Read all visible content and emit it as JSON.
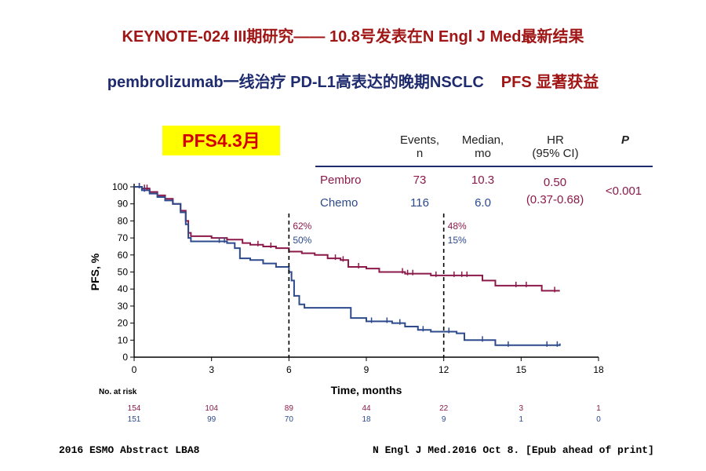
{
  "slide": {
    "title_line1": "KEYNOTE-024   III期研究—— 10.8号发表在N Engl J Med最新结果",
    "title_line2_a": "pembrolizumab一线治疗 PD-L1高表达的晚期NSCLC",
    "title_line2_b": "PFS 显著获益",
    "badge": "PFS4.3月",
    "footer_left": "2016 ESMO  Abstract LBA8",
    "footer_right": "N Engl J Med.2016 Oct 8. [Epub ahead of print]"
  },
  "stats_table": {
    "headers": {
      "events": "Events,",
      "events_unit": "n",
      "median": "Median,",
      "median_unit": "mo",
      "hr": "HR",
      "hr_ci": "(95% CI)",
      "p": "P"
    },
    "pembro": {
      "label": "Pembro",
      "events": "73",
      "median": "10.3"
    },
    "chemo": {
      "label": "Chemo",
      "events": "116",
      "median": "6.0"
    },
    "hr_value": "0.50",
    "hr_range": "(0.37-0.68)",
    "p_value": "<0.001",
    "colors": {
      "pembro": "#8b1a4a",
      "chemo": "#2c4a8c",
      "rule": "#1e2b6e"
    }
  },
  "chart_data": {
    "type": "line",
    "subtype": "kaplan-meier",
    "xlabel": "Time, months",
    "ylabel": "PFS, %",
    "xlim": [
      0,
      18
    ],
    "ylim": [
      0,
      100
    ],
    "x_ticks": [
      0,
      3,
      6,
      9,
      12,
      15,
      18
    ],
    "y_ticks": [
      0,
      10,
      20,
      30,
      40,
      50,
      60,
      70,
      80,
      90,
      100
    ],
    "series": [
      {
        "name": "Pembro",
        "color": "#8b1a4a",
        "points": [
          [
            0,
            100
          ],
          [
            0.3,
            99
          ],
          [
            0.6,
            97
          ],
          [
            0.9,
            95
          ],
          [
            1.2,
            93
          ],
          [
            1.5,
            90
          ],
          [
            1.8,
            86
          ],
          [
            2.0,
            80
          ],
          [
            2.1,
            73
          ],
          [
            2.2,
            71
          ],
          [
            2.6,
            71
          ],
          [
            3.0,
            70
          ],
          [
            3.6,
            69
          ],
          [
            4.2,
            67
          ],
          [
            4.5,
            66
          ],
          [
            5.0,
            65
          ],
          [
            5.5,
            64
          ],
          [
            6.0,
            62
          ],
          [
            6.5,
            61
          ],
          [
            7.0,
            60
          ],
          [
            7.5,
            58
          ],
          [
            8.0,
            57
          ],
          [
            8.3,
            53
          ],
          [
            9.0,
            52
          ],
          [
            9.5,
            50
          ],
          [
            10.0,
            50
          ],
          [
            10.5,
            49
          ],
          [
            11.0,
            49
          ],
          [
            11.5,
            48
          ],
          [
            12.0,
            48
          ],
          [
            13.0,
            48
          ],
          [
            13.5,
            45
          ],
          [
            14.0,
            42
          ],
          [
            15.0,
            42
          ],
          [
            15.8,
            39
          ],
          [
            16.5,
            39
          ]
        ]
      },
      {
        "name": "Chemo",
        "color": "#2c4a8c",
        "points": [
          [
            0,
            100
          ],
          [
            0.3,
            98
          ],
          [
            0.6,
            96
          ],
          [
            0.9,
            94
          ],
          [
            1.2,
            92
          ],
          [
            1.5,
            90
          ],
          [
            1.8,
            85
          ],
          [
            2.0,
            78
          ],
          [
            2.1,
            70
          ],
          [
            2.2,
            68
          ],
          [
            3.0,
            68
          ],
          [
            3.6,
            67
          ],
          [
            3.9,
            64
          ],
          [
            4.1,
            58
          ],
          [
            4.5,
            57
          ],
          [
            5.0,
            55
          ],
          [
            5.5,
            53
          ],
          [
            6.0,
            50
          ],
          [
            6.1,
            45
          ],
          [
            6.2,
            36
          ],
          [
            6.4,
            31
          ],
          [
            6.6,
            29
          ],
          [
            7.0,
            29
          ],
          [
            8.0,
            29
          ],
          [
            8.4,
            23
          ],
          [
            9.0,
            21
          ],
          [
            9.5,
            21
          ],
          [
            10.0,
            20
          ],
          [
            10.5,
            18
          ],
          [
            11.0,
            16
          ],
          [
            11.5,
            15
          ],
          [
            12.0,
            15
          ],
          [
            12.5,
            14
          ],
          [
            12.8,
            10
          ],
          [
            13.5,
            10
          ],
          [
            14.0,
            7
          ],
          [
            15.0,
            7
          ],
          [
            16.5,
            8
          ]
        ]
      }
    ],
    "censor_marks": [
      {
        "series": "Pembro",
        "x": [
          0.2,
          0.4,
          0.5,
          4.8,
          5.3,
          7.8,
          8.1,
          8.7,
          10.4,
          10.6,
          10.8,
          11.7,
          12.4,
          12.7,
          12.9,
          14.8,
          15.2,
          16.3
        ]
      },
      {
        "series": "Chemo",
        "x": [
          0.2,
          0.4,
          3.3,
          3.5,
          9.2,
          9.8,
          10.3,
          11.2,
          12.2,
          13.5,
          14.5,
          16.0,
          16.4
        ]
      }
    ],
    "landmarks": [
      {
        "x": 6,
        "labels": [
          "62%",
          "50%"
        ]
      },
      {
        "x": 12,
        "labels": [
          "48%",
          "15%"
        ]
      }
    ],
    "risk_table": {
      "title": "No. at risk",
      "times": [
        0,
        3,
        6,
        9,
        12,
        15,
        18
      ],
      "rows": [
        {
          "name": "Pembro",
          "values": [
            "154",
            "104",
            "89",
            "44",
            "22",
            "3",
            "1"
          ]
        },
        {
          "name": "Chemo",
          "values": [
            "151",
            "99",
            "70",
            "18",
            "9",
            "1",
            "0"
          ]
        }
      ]
    }
  }
}
